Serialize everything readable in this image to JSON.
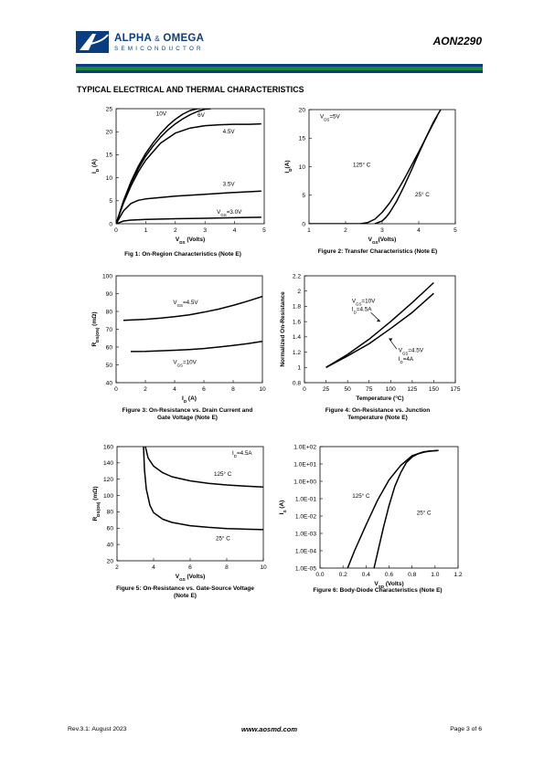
{
  "header": {
    "company_line1": "ALPHA",
    "company_amp": "&",
    "company_line1b": "OMEGA",
    "company_line2": "SEMICONDUCTOR",
    "part_number": "AON2290",
    "bar_colors": [
      "#0a3d80",
      "#1a8a3a",
      "#0a3d80"
    ]
  },
  "section_title": "TYPICAL ELECTRICAL AND THERMAL CHARACTERISTICS",
  "footer": {
    "revision": "Rev.3.1: August 2023",
    "url": "www.aosmd.com",
    "page": "Page 3 of 6"
  },
  "chart_data": [
    {
      "id": "fig1",
      "type": "line",
      "caption": "Fig 1: On-Region Characteristics (Note E)",
      "xlabel": "VDS (Volts)",
      "ylabel": "ID (A)",
      "xlim": [
        0,
        5
      ],
      "ylim": [
        0,
        25
      ],
      "xticks": [
        "0",
        "1",
        "2",
        "3",
        "4",
        "5"
      ],
      "yticks": [
        "0",
        "5",
        "10",
        "15",
        "20",
        "25"
      ],
      "series": [
        {
          "name": "10V",
          "x": [
            0,
            0.25,
            0.5,
            0.75,
            1,
            1.25,
            1.5,
            1.75,
            2,
            2.25,
            2.5,
            2.75,
            2.85
          ],
          "y": [
            0,
            5,
            9.1,
            12.5,
            15.3,
            17.6,
            19.6,
            21.3,
            22.7,
            23.8,
            24.6,
            25,
            25
          ]
        },
        {
          "name": "6V",
          "x": [
            0,
            0.25,
            0.5,
            0.75,
            1,
            1.25,
            1.5,
            1.75,
            2,
            2.25,
            2.5,
            2.75,
            3,
            3.2
          ],
          "y": [
            0,
            4.8,
            8.8,
            12,
            14.7,
            16.9,
            18.8,
            20.4,
            21.7,
            22.8,
            23.7,
            24.4,
            24.9,
            25
          ]
        },
        {
          "name": "4.5V",
          "x": [
            0,
            0.25,
            0.5,
            0.75,
            1,
            1.5,
            2,
            2.5,
            3,
            3.5,
            4,
            4.5,
            4.9
          ],
          "y": [
            0,
            4.5,
            8.2,
            11.3,
            13.8,
            17.5,
            19.7,
            20.8,
            21.3,
            21.5,
            21.6,
            21.6,
            21.7
          ]
        },
        {
          "name": "3.5V",
          "x": [
            0,
            0.25,
            0.5,
            0.75,
            1,
            1.5,
            2,
            3,
            4,
            4.9
          ],
          "y": [
            0,
            2.8,
            4.4,
            5.1,
            5.4,
            5.7,
            6,
            6.4,
            6.8,
            7.1
          ]
        },
        {
          "name": "VGS=3.0V",
          "x": [
            0,
            0.25,
            0.5,
            1,
            2,
            3,
            4,
            4.9
          ],
          "y": [
            0,
            0.6,
            0.8,
            0.95,
            1.1,
            1.2,
            1.3,
            1.4
          ]
        }
      ],
      "annotations": [
        {
          "text": "10V",
          "x": 1.35,
          "y": 23.5
        },
        {
          "text": "6V",
          "x": 2.75,
          "y": 23.2
        },
        {
          "text": "4.5V",
          "x": 3.6,
          "y": 19.6
        },
        {
          "text": "3.5V",
          "x": 3.6,
          "y": 8.2
        },
        {
          "text": "VGS=3.0V",
          "x": 3.4,
          "y": 2.2
        }
      ]
    },
    {
      "id": "fig2",
      "type": "line",
      "caption": "Figure 2: Transfer Characteristics (Note E)",
      "xlabel": "VGS(Volts)",
      "ylabel": "ID(A)",
      "xlim": [
        1,
        5
      ],
      "ylim": [
        0,
        20
      ],
      "xticks": [
        "1",
        "2",
        "3",
        "4",
        "5"
      ],
      "yticks": [
        "0",
        "5",
        "10",
        "15",
        "20"
      ],
      "series": [
        {
          "name": "125°C",
          "x": [
            1,
            2,
            2.4,
            2.6,
            2.8,
            3,
            3.2,
            3.4,
            3.6,
            3.8,
            4,
            4.2,
            4.4,
            4.5
          ],
          "y": [
            0,
            0,
            0,
            0.2,
            0.8,
            2,
            3.6,
            5.6,
            7.8,
            10.2,
            12.6,
            15.1,
            17.6,
            18.8
          ]
        },
        {
          "name": "25°C",
          "x": [
            2.8,
            3,
            3.1,
            3.2,
            3.4,
            3.6,
            3.8,
            4,
            4.2,
            4.4,
            4.6,
            4.6
          ],
          "y": [
            0,
            0.5,
            1.1,
            1.9,
            4,
            6.6,
            9.4,
            12.3,
            15.1,
            17.8,
            20,
            20
          ]
        }
      ],
      "annotations": [
        {
          "text": "VDS=5V",
          "x": 1.3,
          "y": 18.5
        },
        {
          "text": "125° C",
          "x": 2.2,
          "y": 10
        },
        {
          "text": "25° C",
          "x": 3.9,
          "y": 4.8
        }
      ]
    },
    {
      "id": "fig3",
      "type": "line",
      "caption": "Figure 3: On-Resistance vs. Drain Current and Gate Voltage (Note E)",
      "caption_line1": "Figure 3: On-Resistance vs. Drain Current and",
      "caption_line2": "Gate Voltage (Note E)",
      "xlabel": "ID (A)",
      "ylabel": "RDS(ON) (mΩ)",
      "xlim": [
        0,
        10
      ],
      "ylim": [
        40,
        100
      ],
      "xticks": [
        "0",
        "2",
        "4",
        "6",
        "8",
        "10"
      ],
      "yticks": [
        "40",
        "50",
        "60",
        "70",
        "80",
        "90",
        "100"
      ],
      "series": [
        {
          "name": "VGS=4.5V",
          "x": [
            0.5,
            1,
            2,
            3,
            4,
            5,
            6,
            7,
            8,
            9,
            10
          ],
          "y": [
            75,
            75.2,
            75.6,
            76.2,
            77,
            78.1,
            79.6,
            81.3,
            83.4,
            85.8,
            88.4
          ]
        },
        {
          "name": "VGS=10V",
          "x": [
            1,
            2,
            3,
            4,
            5,
            6,
            7,
            8,
            9,
            10
          ],
          "y": [
            57.5,
            57.6,
            57.9,
            58.2,
            58.6,
            59.2,
            60,
            60.9,
            61.9,
            63.2
          ]
        }
      ],
      "annotations": [
        {
          "text": "VGS=4.5V",
          "x": 3.9,
          "y": 84
        },
        {
          "text": "VGS=10V",
          "x": 3.9,
          "y": 50.6
        }
      ]
    },
    {
      "id": "fig4",
      "type": "line",
      "caption": "Figure 4: On-Resistance vs. Junction Temperature (Note E)",
      "caption_line1": "Figure 4: On-Resistance vs. Junction",
      "caption_line2": "Temperature (Note E)",
      "xlabel": "Temperature (°C)",
      "ylabel": "Normalized On-Resistance",
      "xlim": [
        0,
        175
      ],
      "ylim": [
        0.8,
        2.2
      ],
      "xticks": [
        "0",
        "25",
        "50",
        "75",
        "100",
        "125",
        "150",
        "175"
      ],
      "yticks": [
        "0.8",
        "1",
        "1.2",
        "1.4",
        "1.6",
        "1.8",
        "2",
        "2.2"
      ],
      "series": [
        {
          "name": "VGS=10V, ID=4.5A",
          "x": [
            25,
            50,
            75,
            100,
            125,
            150
          ],
          "y": [
            1,
            1.17,
            1.37,
            1.6,
            1.85,
            2.11
          ]
        },
        {
          "name": "VGS=4.5V, ID=4A",
          "x": [
            25,
            50,
            75,
            100,
            125,
            150
          ],
          "y": [
            1,
            1.15,
            1.31,
            1.51,
            1.72,
            1.97
          ]
        }
      ],
      "annotations": [
        {
          "text": "VGS=10V",
          "x": 55,
          "y": 1.85
        },
        {
          "text": "ID=4.5A",
          "x": 55,
          "y": 1.74
        },
        {
          "text": "VGS=4.5V",
          "x": 109,
          "y": 1.2
        },
        {
          "text": "ID=4A",
          "x": 109,
          "y": 1.09
        }
      ]
    },
    {
      "id": "fig5",
      "type": "line",
      "caption": "Figure 5: On-Resistance vs. Gate-Source Voltage (Note E)",
      "caption_line1": "Figure 5: On-Resistance vs. Gate-Source Voltage",
      "caption_line2": "(Note E)",
      "xlabel": "VGS (Volts)",
      "ylabel": "RDS(ON) (mΩ)",
      "xlim": [
        2,
        10
      ],
      "ylim": [
        20,
        160
      ],
      "xticks": [
        "2",
        "4",
        "6",
        "8",
        "10"
      ],
      "yticks": [
        "20",
        "40",
        "60",
        "80",
        "100",
        "120",
        "140",
        "160"
      ],
      "series": [
        {
          "name": "125° C",
          "x": [
            3.55,
            3.7,
            4,
            4.5,
            5,
            6,
            7,
            8,
            9,
            10
          ],
          "y": [
            160,
            146,
            136,
            128,
            123,
            118,
            115,
            113,
            111.5,
            110.5
          ]
        },
        {
          "name": "25° C",
          "x": [
            3.45,
            3.5,
            3.6,
            3.8,
            4,
            4.5,
            5,
            6,
            7,
            8,
            9,
            10
          ],
          "y": [
            160,
            132,
            108,
            88,
            79,
            71,
            67,
            63,
            61,
            59.5,
            58.8,
            58.2
          ]
        }
      ],
      "annotations": [
        {
          "text": "ID=4.5A",
          "x": 8.3,
          "y": 150
        },
        {
          "text": "125° C",
          "x": 7.3,
          "y": 124
        },
        {
          "text": "25° C",
          "x": 7.4,
          "y": 45
        }
      ]
    },
    {
      "id": "fig6",
      "type": "line",
      "caption": "Figure 6: Body-Diode Characteristics (Note E)",
      "xlabel": "VSD (Volts)",
      "ylabel": "IS (A)",
      "xlim": [
        0,
        1.2
      ],
      "ylim_log10": [
        -5,
        2
      ],
      "yscale": "log",
      "xticks": [
        "0.0",
        "0.2",
        "0.4",
        "0.6",
        "0.8",
        "1.0",
        "1.2"
      ],
      "yticks": [
        "1.0E-05",
        "1.0E-04",
        "1.0E-03",
        "1.0E-02",
        "1.0E-01",
        "1.0E+00",
        "1.0E+01",
        "1.0E+02"
      ],
      "series": [
        {
          "name": "125° C",
          "x": [
            0.24,
            0.3,
            0.4,
            0.5,
            0.6,
            0.7,
            0.8,
            0.9,
            0.95,
            1.0,
            1.03
          ],
          "y": [
            1e-05,
            0.0001,
            0.003,
            0.08,
            1.2,
            8,
            30,
            50,
            55,
            58,
            60
          ]
        },
        {
          "name": "25° C",
          "x": [
            0.47,
            0.55,
            0.6,
            0.65,
            0.7,
            0.75,
            0.8,
            0.85,
            0.9,
            0.95,
            1.0,
            1.03
          ],
          "y": [
            1e-05,
            0.002,
            0.04,
            0.5,
            3,
            12,
            25,
            38,
            48,
            54,
            58,
            60
          ]
        }
      ],
      "annotations": [
        {
          "text": "125° C",
          "x": 0.28,
          "y": 0.11
        },
        {
          "text": "25° C",
          "x": 0.84,
          "y": 0.012
        }
      ]
    }
  ]
}
